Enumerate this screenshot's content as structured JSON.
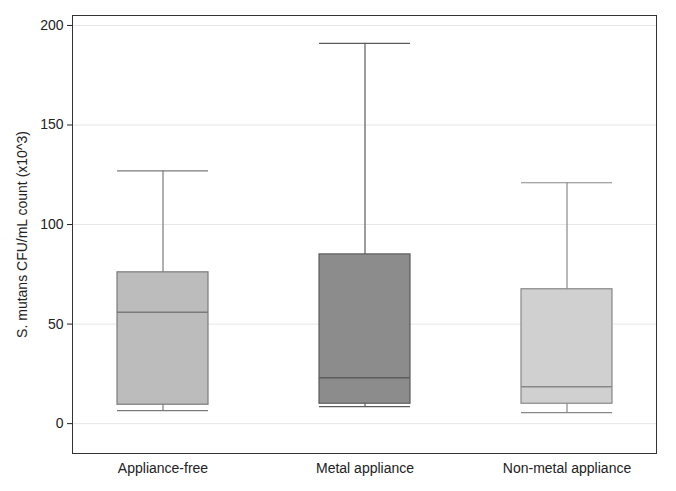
{
  "chart_data": {
    "type": "box",
    "y_label": "S. mutans CFU/mL count (x10^3)",
    "categories": [
      "Appliance-free",
      "Metal appliance",
      "Non-metal appliance"
    ],
    "stats": {
      "min": [
        6.5,
        8.5,
        5.5
      ],
      "q1": [
        9.5,
        10,
        10
      ],
      "median": [
        56,
        23,
        18.5
      ],
      "q3": [
        76,
        85,
        67.5
      ],
      "max": [
        127,
        191,
        121
      ]
    },
    "colors": [
      "#bcbcbc",
      "#8c8c8c",
      "#d0d0d0"
    ],
    "ylim": [
      -15,
      205
    ],
    "yticks": [
      0,
      50,
      100,
      150,
      200
    ],
    "grid": true
  }
}
